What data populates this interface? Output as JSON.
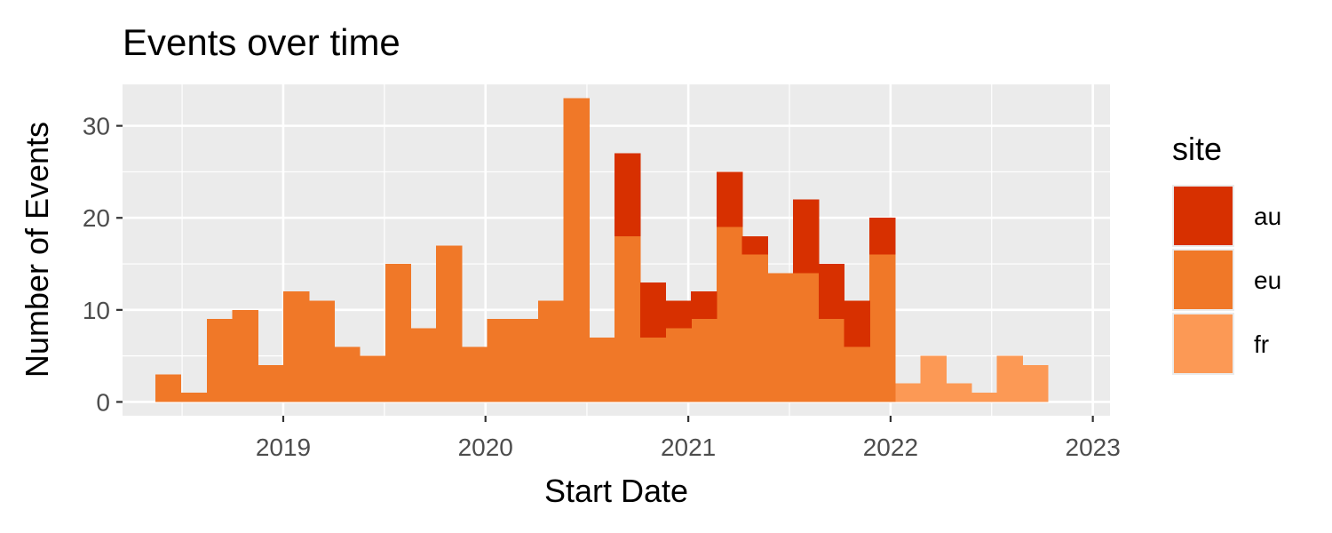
{
  "chart_data": {
    "type": "bar",
    "stacked": true,
    "title": "Events over time",
    "xlabel": "Start Date",
    "ylabel": "Number of Events",
    "x_ticks": [
      "2019",
      "2020",
      "2021",
      "2022",
      "2023"
    ],
    "x_tick_dates": [
      "2019-01-01",
      "2020-01-01",
      "2021-01-01",
      "2022-01-01",
      "2023-01-01"
    ],
    "xlim": [
      "2018-03-17",
      "2023-02-01"
    ],
    "y_ticks": [
      0,
      10,
      20,
      30
    ],
    "ylim": [
      -1.5,
      34.5
    ],
    "grid": true,
    "legend": {
      "title": "site",
      "position": "right"
    },
    "bin_starts": [
      "2018-05-15",
      "2018-07-01",
      "2018-08-16",
      "2018-10-01",
      "2018-11-16",
      "2019-01-01",
      "2019-02-16",
      "2019-04-03",
      "2019-05-19",
      "2019-07-04",
      "2019-08-19",
      "2019-10-04",
      "2019-11-19",
      "2020-01-04",
      "2020-02-19",
      "2020-04-05",
      "2020-05-21",
      "2020-07-06",
      "2020-08-21",
      "2020-10-06",
      "2020-11-21",
      "2021-01-06",
      "2021-02-21",
      "2021-04-08",
      "2021-05-24",
      "2021-07-09",
      "2021-08-24",
      "2021-10-09",
      "2021-11-24",
      "2022-01-09",
      "2022-02-24",
      "2022-04-11",
      "2022-05-27",
      "2022-07-12",
      "2022-08-27",
      "2022-10-12",
      "2022-11-27"
    ],
    "series": [
      {
        "name": "fr",
        "color": "#fc9955",
        "values": [
          0,
          0,
          0,
          0,
          0,
          0,
          0,
          0,
          0,
          0,
          0,
          0,
          0,
          0,
          0,
          0,
          0,
          0,
          0,
          0,
          0,
          0,
          0,
          0,
          0,
          0,
          0,
          0,
          0,
          2,
          5,
          2,
          1,
          5,
          4,
          0,
          0
        ]
      },
      {
        "name": "eu",
        "color": "#f07828",
        "values": [
          3,
          1,
          9,
          10,
          4,
          12,
          11,
          6,
          5,
          15,
          8,
          17,
          6,
          9,
          9,
          11,
          33,
          7,
          18,
          7,
          8,
          9,
          19,
          16,
          14,
          14,
          9,
          6,
          16,
          0,
          0,
          0,
          0,
          0,
          0,
          0,
          0
        ]
      },
      {
        "name": "au",
        "color": "#d73000",
        "values": [
          0,
          0,
          0,
          0,
          0,
          0,
          0,
          0,
          0,
          0,
          0,
          0,
          0,
          0,
          0,
          0,
          0,
          0,
          9,
          6,
          3,
          3,
          6,
          2,
          0,
          8,
          6,
          5,
          4,
          0,
          0,
          0,
          0,
          0,
          0,
          0,
          0
        ]
      }
    ]
  }
}
